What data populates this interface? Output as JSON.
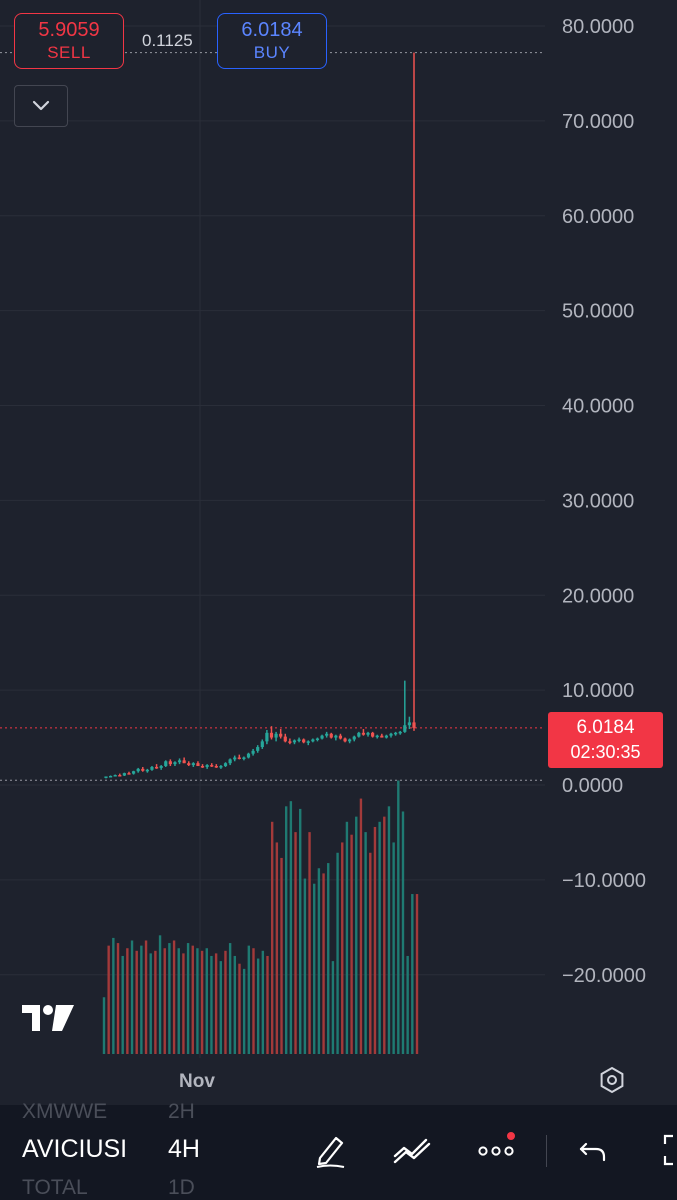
{
  "trade_panel": {
    "sell": {
      "price": "5.9059",
      "label": "SELL"
    },
    "buy": {
      "price": "6.0184",
      "label": "BUY"
    },
    "spread": "0.1125"
  },
  "price_scale": {
    "ticks": [
      "80.0000",
      "70.0000",
      "60.0000",
      "50.0000",
      "40.0000",
      "30.0000",
      "20.0000",
      "10.0000",
      "0.0000",
      "−10.0000",
      "−20.0000"
    ]
  },
  "last_price": {
    "price": "6.0184",
    "countdown": "02:30:35"
  },
  "time_axis": {
    "label": "Nov"
  },
  "colors": {
    "up": "#26a69a",
    "down": "#ef5350",
    "sell": "#f23645",
    "buy": "#2962ff",
    "background": "#1e222d"
  },
  "chart_data": {
    "type": "candlestick",
    "ylim": [
      -28.5,
      82
    ],
    "y_ticks": [
      80,
      70,
      60,
      50,
      40,
      30,
      20,
      10,
      0,
      -10,
      -20
    ],
    "last_price": 6.0184,
    "reference_line": 0.5,
    "high_line": 77.2,
    "x_label": "Nov",
    "candles": [
      [
        0.8,
        0.9,
        0.7,
        0.9
      ],
      [
        0.9,
        1.0,
        0.8,
        0.95
      ],
      [
        0.95,
        1.1,
        0.9,
        1.05
      ],
      [
        1.05,
        1.2,
        0.95,
        1.0
      ],
      [
        1.0,
        1.3,
        0.95,
        1.25
      ],
      [
        1.25,
        1.4,
        1.1,
        1.2
      ],
      [
        1.2,
        1.5,
        1.1,
        1.45
      ],
      [
        1.45,
        1.8,
        1.3,
        1.7
      ],
      [
        1.7,
        1.9,
        1.4,
        1.5
      ],
      [
        1.5,
        1.7,
        1.3,
        1.6
      ],
      [
        1.6,
        2.0,
        1.5,
        1.9
      ],
      [
        1.9,
        2.2,
        1.7,
        1.8
      ],
      [
        1.8,
        2.1,
        1.6,
        2.0
      ],
      [
        2.0,
        2.6,
        1.9,
        2.5
      ],
      [
        2.5,
        2.7,
        2.0,
        2.2
      ],
      [
        2.2,
        2.5,
        2.0,
        2.4
      ],
      [
        2.4,
        2.8,
        2.2,
        2.6
      ],
      [
        2.6,
        2.9,
        2.3,
        2.3
      ],
      [
        2.3,
        2.5,
        2.0,
        2.1
      ],
      [
        2.1,
        2.4,
        1.9,
        2.3
      ],
      [
        2.3,
        2.5,
        2.0,
        2.0
      ],
      [
        2.0,
        2.2,
        1.8,
        1.9
      ],
      [
        1.9,
        2.2,
        1.7,
        2.1
      ],
      [
        2.1,
        2.3,
        1.9,
        2.0
      ],
      [
        2.0,
        2.2,
        1.8,
        1.9
      ],
      [
        1.9,
        2.1,
        1.7,
        2.0
      ],
      [
        2.0,
        2.4,
        1.9,
        2.3
      ],
      [
        2.3,
        2.8,
        2.1,
        2.7
      ],
      [
        2.7,
        3.1,
        2.5,
        2.9
      ],
      [
        2.9,
        3.2,
        2.7,
        2.8
      ],
      [
        2.8,
        3.0,
        2.6,
        2.9
      ],
      [
        2.9,
        3.4,
        2.8,
        3.3
      ],
      [
        3.3,
        3.8,
        3.1,
        3.6
      ],
      [
        3.6,
        4.2,
        3.4,
        4.0
      ],
      [
        4.0,
        4.8,
        3.8,
        4.6
      ],
      [
        4.6,
        5.8,
        4.3,
        5.5
      ],
      [
        5.5,
        6.2,
        4.8,
        5.0
      ],
      [
        5.0,
        5.6,
        4.6,
        5.4
      ],
      [
        5.4,
        5.9,
        4.9,
        5.1
      ],
      [
        5.1,
        5.4,
        4.5,
        4.6
      ],
      [
        4.6,
        4.9,
        4.3,
        4.5
      ],
      [
        4.5,
        4.8,
        4.3,
        4.7
      ],
      [
        4.7,
        5.0,
        4.5,
        4.8
      ],
      [
        4.8,
        4.9,
        4.4,
        4.5
      ],
      [
        4.5,
        4.7,
        4.2,
        4.6
      ],
      [
        4.6,
        4.9,
        4.5,
        4.8
      ],
      [
        4.8,
        5.0,
        4.6,
        4.9
      ],
      [
        4.9,
        5.3,
        4.8,
        5.2
      ],
      [
        5.2,
        5.6,
        5.0,
        5.4
      ],
      [
        5.4,
        5.5,
        4.9,
        5.0
      ],
      [
        5.0,
        5.3,
        4.7,
        5.2
      ],
      [
        5.2,
        5.4,
        4.8,
        4.9
      ],
      [
        4.9,
        5.0,
        4.5,
        4.6
      ],
      [
        4.6,
        4.9,
        4.4,
        4.8
      ],
      [
        4.8,
        5.2,
        4.6,
        5.1
      ],
      [
        5.1,
        5.6,
        5.0,
        5.5
      ],
      [
        5.5,
        5.9,
        5.2,
        5.3
      ],
      [
        5.3,
        5.6,
        5.1,
        5.5
      ],
      [
        5.5,
        5.6,
        5.0,
        5.1
      ],
      [
        5.1,
        5.3,
        4.9,
        5.2
      ],
      [
        5.2,
        5.4,
        5.0,
        5.0
      ],
      [
        5.0,
        5.3,
        4.9,
        5.2
      ],
      [
        5.2,
        5.5,
        5.0,
        5.4
      ],
      [
        5.4,
        5.6,
        5.2,
        5.5
      ],
      [
        5.5,
        5.7,
        5.3,
        5.6
      ],
      [
        5.6,
        11.0,
        5.5,
        6.3
      ],
      [
        6.3,
        7.2,
        5.9,
        6.6
      ],
      [
        6.6,
        77.2,
        5.7,
        6.02
      ]
    ],
    "volume": [
      [
        0.22,
        "up"
      ],
      [
        0.42,
        "down"
      ],
      [
        0.45,
        "up"
      ],
      [
        0.43,
        "down"
      ],
      [
        0.38,
        "up"
      ],
      [
        0.41,
        "down"
      ],
      [
        0.44,
        "up"
      ],
      [
        0.4,
        "down"
      ],
      [
        0.42,
        "up"
      ],
      [
        0.44,
        "down"
      ],
      [
        0.39,
        "up"
      ],
      [
        0.4,
        "down"
      ],
      [
        0.46,
        "up"
      ],
      [
        0.41,
        "down"
      ],
      [
        0.43,
        "up"
      ],
      [
        0.44,
        "down"
      ],
      [
        0.41,
        "up"
      ],
      [
        0.39,
        "down"
      ],
      [
        0.43,
        "up"
      ],
      [
        0.42,
        "down"
      ],
      [
        0.41,
        "up"
      ],
      [
        0.4,
        "down"
      ],
      [
        0.41,
        "up"
      ],
      [
        0.38,
        "up"
      ],
      [
        0.39,
        "down"
      ],
      [
        0.36,
        "up"
      ],
      [
        0.4,
        "down"
      ],
      [
        0.43,
        "up"
      ],
      [
        0.38,
        "up"
      ],
      [
        0.35,
        "down"
      ],
      [
        0.33,
        "up"
      ],
      [
        0.42,
        "up"
      ],
      [
        0.41,
        "down"
      ],
      [
        0.37,
        "up"
      ],
      [
        0.4,
        "up"
      ],
      [
        0.38,
        "down"
      ],
      [
        0.9,
        "down"
      ],
      [
        0.82,
        "down"
      ],
      [
        0.76,
        "down"
      ],
      [
        0.96,
        "up"
      ],
      [
        0.98,
        "up"
      ],
      [
        0.86,
        "down"
      ],
      [
        0.95,
        "up"
      ],
      [
        0.68,
        "up"
      ],
      [
        0.86,
        "down"
      ],
      [
        0.66,
        "up"
      ],
      [
        0.72,
        "up"
      ],
      [
        0.7,
        "down"
      ],
      [
        0.74,
        "up"
      ],
      [
        0.36,
        "up"
      ],
      [
        0.78,
        "up"
      ],
      [
        0.82,
        "down"
      ],
      [
        0.9,
        "up"
      ],
      [
        0.85,
        "down"
      ],
      [
        0.92,
        "up"
      ],
      [
        0.99,
        "down"
      ],
      [
        0.86,
        "up"
      ],
      [
        0.78,
        "down"
      ],
      [
        0.88,
        "down"
      ],
      [
        0.9,
        "up"
      ],
      [
        0.92,
        "down"
      ],
      [
        0.96,
        "up"
      ],
      [
        0.82,
        "up"
      ],
      [
        1.06,
        "up"
      ],
      [
        0.94,
        "up"
      ],
      [
        0.38,
        "up"
      ],
      [
        0.62,
        "up"
      ],
      [
        0.62,
        "down"
      ]
    ]
  },
  "bottom_bar": {
    "symbol_prev": "XMWWE",
    "interval_prev": "2H",
    "symbol_current": "AVICIUSI",
    "interval_current": "4H",
    "symbol_next": "TOTAL",
    "interval_next": "1D"
  },
  "icons": [
    "chevron-down-icon",
    "tradingview-logo",
    "settings-hexagon-icon",
    "drawing-pen-icon",
    "indicators-icon",
    "more-dots-icon",
    "undo-icon"
  ]
}
